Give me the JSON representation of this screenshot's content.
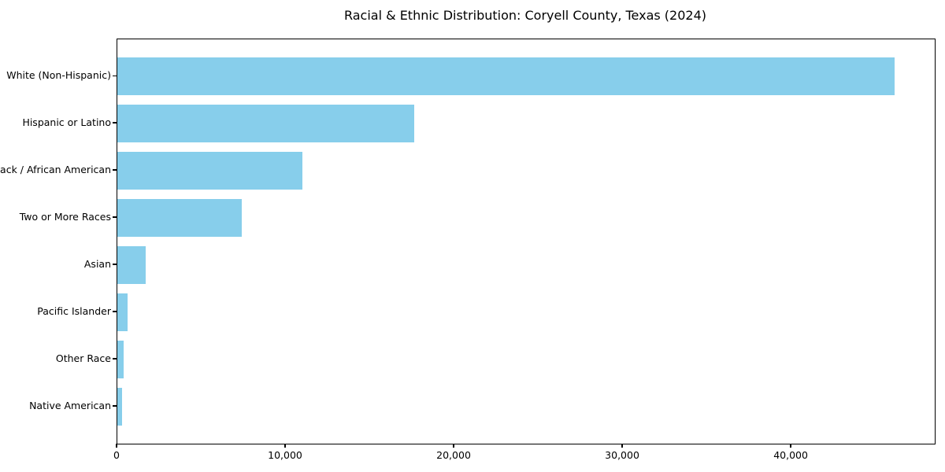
{
  "chart_data": {
    "type": "bar",
    "orientation": "horizontal",
    "title": "Racial & Ethnic Distribution: Coryell County, Texas (2024)",
    "xlabel": "",
    "ylabel": "",
    "categories": [
      "White (Non-Hispanic)",
      "Hispanic or Latino",
      "Black / African American",
      "Two or More Races",
      "Asian",
      "Pacific Islander",
      "Other Race",
      "Native American"
    ],
    "values": [
      46100,
      17600,
      11000,
      7400,
      1700,
      620,
      350,
      260
    ],
    "xlim": [
      0,
      48500
    ],
    "xticks": [
      0,
      10000,
      20000,
      30000,
      40000
    ],
    "xtick_labels": [
      "0",
      "10,000",
      "20,000",
      "30,000",
      "40,000"
    ],
    "bar_color": "#87CEEB",
    "axis_color": "#000000",
    "background_color": "#ffffff",
    "grid": false,
    "legend": null
  }
}
